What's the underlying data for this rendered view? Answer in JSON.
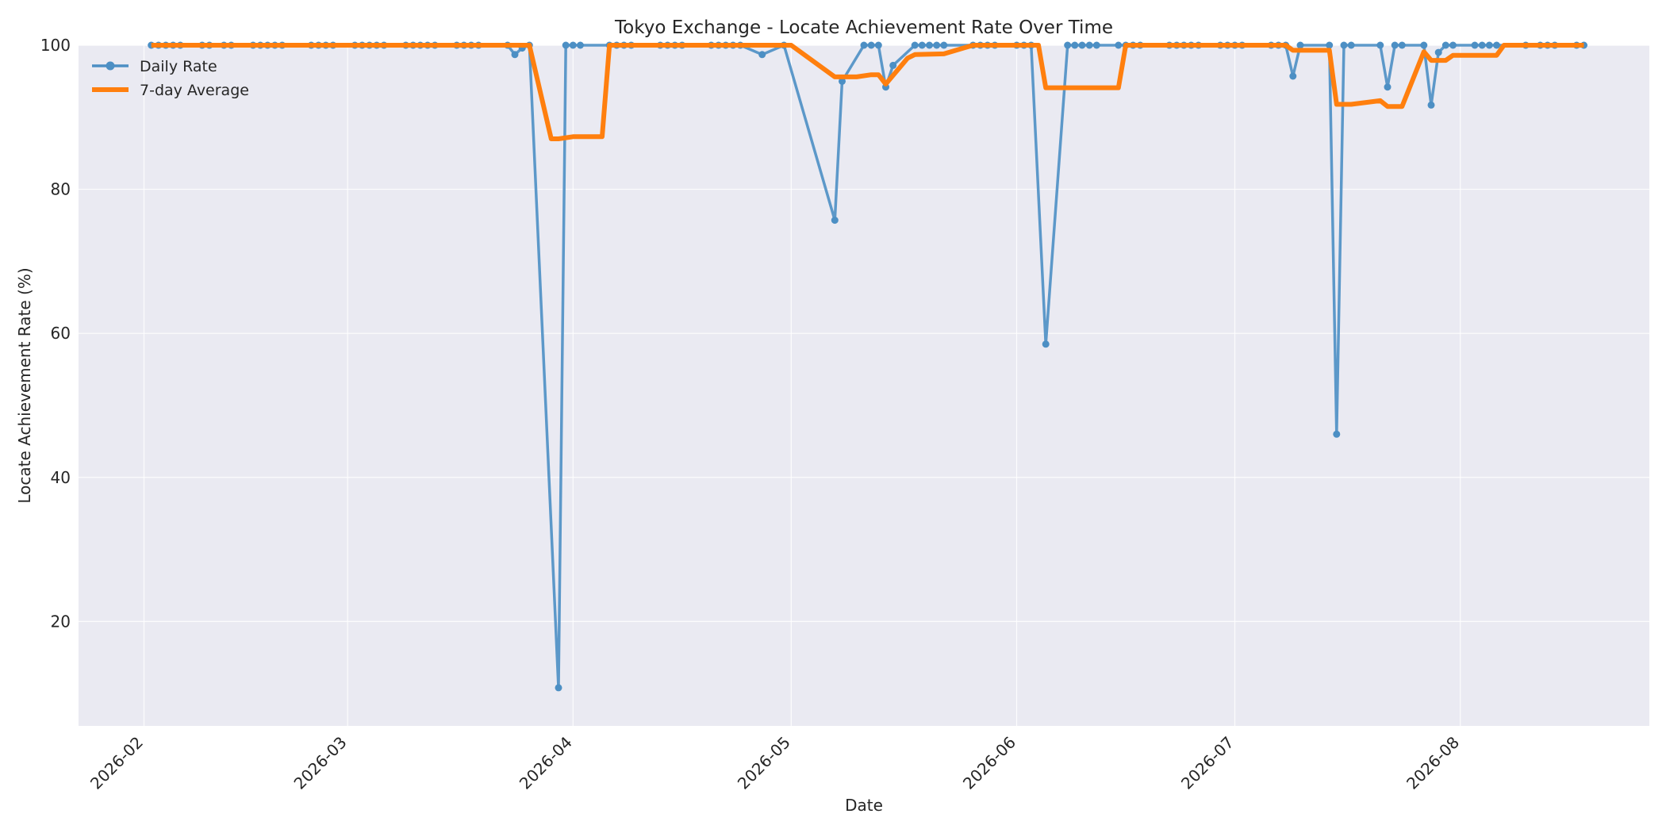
{
  "chart_data": {
    "type": "line",
    "title": "Tokyo Exchange - Locate Achievement Rate Over Time",
    "xlabel": "Date",
    "ylabel": "Locate Achievement Rate (%)",
    "xlim": [
      "2026-01-23",
      "2026-08-27"
    ],
    "ylim": [
      5.5,
      100
    ],
    "x_ticks": [
      "2026-02-01",
      "2026-03-01",
      "2026-04-01",
      "2026-05-01",
      "2026-06-01",
      "2026-07-01",
      "2026-08-01"
    ],
    "x_tick_labels": [
      "2026-02",
      "2026-03",
      "2026-04",
      "2026-05",
      "2026-06",
      "2026-07",
      "2026-08"
    ],
    "y_ticks": [
      20,
      40,
      60,
      80,
      100
    ],
    "grid": true,
    "legend": {
      "position": "upper-left"
    },
    "colors": {
      "daily": "#4c8fc4",
      "average": "#ff7f0e",
      "plot_bg": "#eaeaf2"
    },
    "series": [
      {
        "name": "Daily Rate",
        "style": "line-markers",
        "points": [
          [
            "2026-02-02",
            100
          ],
          [
            "2026-02-03",
            100
          ],
          [
            "2026-02-04",
            100
          ],
          [
            "2026-02-05",
            100
          ],
          [
            "2026-02-06",
            100
          ],
          [
            "2026-02-09",
            100
          ],
          [
            "2026-02-10",
            100
          ],
          [
            "2026-02-12",
            100
          ],
          [
            "2026-02-13",
            100
          ],
          [
            "2026-02-16",
            100
          ],
          [
            "2026-02-17",
            100
          ],
          [
            "2026-02-18",
            100
          ],
          [
            "2026-02-19",
            100
          ],
          [
            "2026-02-20",
            100
          ],
          [
            "2026-02-24",
            100
          ],
          [
            "2026-02-25",
            100
          ],
          [
            "2026-02-26",
            100
          ],
          [
            "2026-02-27",
            100
          ],
          [
            "2026-03-02",
            100
          ],
          [
            "2026-03-03",
            100
          ],
          [
            "2026-03-04",
            100
          ],
          [
            "2026-03-05",
            100
          ],
          [
            "2026-03-06",
            100
          ],
          [
            "2026-03-09",
            100
          ],
          [
            "2026-03-10",
            100
          ],
          [
            "2026-03-11",
            100
          ],
          [
            "2026-03-12",
            100
          ],
          [
            "2026-03-13",
            100
          ],
          [
            "2026-03-16",
            100
          ],
          [
            "2026-03-17",
            100
          ],
          [
            "2026-03-18",
            100
          ],
          [
            "2026-03-19",
            100
          ],
          [
            "2026-03-23",
            100
          ],
          [
            "2026-03-24",
            98.7
          ],
          [
            "2026-03-25",
            99.6
          ],
          [
            "2026-03-26",
            100
          ],
          [
            "2026-03-30",
            10.8
          ],
          [
            "2026-03-31",
            100
          ],
          [
            "2026-04-01",
            100
          ],
          [
            "2026-04-02",
            100
          ],
          [
            "2026-04-06",
            100
          ],
          [
            "2026-04-07",
            100
          ],
          [
            "2026-04-08",
            100
          ],
          [
            "2026-04-09",
            100
          ],
          [
            "2026-04-13",
            100
          ],
          [
            "2026-04-14",
            100
          ],
          [
            "2026-04-15",
            100
          ],
          [
            "2026-04-16",
            100
          ],
          [
            "2026-04-20",
            100
          ],
          [
            "2026-04-21",
            100
          ],
          [
            "2026-04-22",
            100
          ],
          [
            "2026-04-23",
            100
          ],
          [
            "2026-04-24",
            100
          ],
          [
            "2026-04-27",
            98.7
          ],
          [
            "2026-04-30",
            100
          ],
          [
            "2026-05-07",
            75.7
          ],
          [
            "2026-05-08",
            95
          ],
          [
            "2026-05-11",
            100
          ],
          [
            "2026-05-12",
            100
          ],
          [
            "2026-05-13",
            100
          ],
          [
            "2026-05-14",
            94.2
          ],
          [
            "2026-05-15",
            97.2
          ],
          [
            "2026-05-18",
            100
          ],
          [
            "2026-05-19",
            100
          ],
          [
            "2026-05-20",
            100
          ],
          [
            "2026-05-21",
            100
          ],
          [
            "2026-05-22",
            100
          ],
          [
            "2026-05-26",
            100
          ],
          [
            "2026-05-27",
            100
          ],
          [
            "2026-05-28",
            100
          ],
          [
            "2026-05-29",
            100
          ],
          [
            "2026-06-01",
            100
          ],
          [
            "2026-06-02",
            100
          ],
          [
            "2026-06-03",
            100
          ],
          [
            "2026-06-05",
            58.5
          ],
          [
            "2026-06-08",
            100
          ],
          [
            "2026-06-09",
            100
          ],
          [
            "2026-06-10",
            100
          ],
          [
            "2026-06-11",
            100
          ],
          [
            "2026-06-12",
            100
          ],
          [
            "2026-06-15",
            100
          ],
          [
            "2026-06-16",
            100
          ],
          [
            "2026-06-17",
            100
          ],
          [
            "2026-06-18",
            100
          ],
          [
            "2026-06-22",
            100
          ],
          [
            "2026-06-23",
            100
          ],
          [
            "2026-06-24",
            100
          ],
          [
            "2026-06-25",
            100
          ],
          [
            "2026-06-26",
            100
          ],
          [
            "2026-06-29",
            100
          ],
          [
            "2026-06-30",
            100
          ],
          [
            "2026-07-01",
            100
          ],
          [
            "2026-07-02",
            100
          ],
          [
            "2026-07-06",
            100
          ],
          [
            "2026-07-07",
            100
          ],
          [
            "2026-07-08",
            100
          ],
          [
            "2026-07-09",
            95.7
          ],
          [
            "2026-07-10",
            100
          ],
          [
            "2026-07-14",
            100
          ],
          [
            "2026-07-15",
            46
          ],
          [
            "2026-07-16",
            100
          ],
          [
            "2026-07-17",
            100
          ],
          [
            "2026-07-21",
            100
          ],
          [
            "2026-07-22",
            94.2
          ],
          [
            "2026-07-23",
            100
          ],
          [
            "2026-07-24",
            100
          ],
          [
            "2026-07-27",
            100
          ],
          [
            "2026-07-28",
            91.7
          ],
          [
            "2026-07-29",
            99
          ],
          [
            "2026-07-30",
            100
          ],
          [
            "2026-07-31",
            100
          ],
          [
            "2026-08-03",
            100
          ],
          [
            "2026-08-04",
            100
          ],
          [
            "2026-08-05",
            100
          ],
          [
            "2026-08-06",
            100
          ],
          [
            "2026-08-10",
            100
          ],
          [
            "2026-08-12",
            100
          ],
          [
            "2026-08-13",
            100
          ],
          [
            "2026-08-14",
            100
          ],
          [
            "2026-08-17",
            100
          ],
          [
            "2026-08-18",
            100
          ]
        ]
      },
      {
        "name": "7-day Average",
        "style": "line",
        "points": [
          [
            "2026-02-02",
            100
          ],
          [
            "2026-03-26",
            100
          ],
          [
            "2026-03-29",
            87
          ],
          [
            "2026-03-30",
            87
          ],
          [
            "2026-04-01",
            87.3
          ],
          [
            "2026-04-05",
            87.3
          ],
          [
            "2026-04-06",
            100
          ],
          [
            "2026-05-01",
            100
          ],
          [
            "2026-05-07",
            95.6
          ],
          [
            "2026-05-10",
            95.6
          ],
          [
            "2026-05-12",
            95.9
          ],
          [
            "2026-05-13",
            95.9
          ],
          [
            "2026-05-14",
            94.6
          ],
          [
            "2026-05-17",
            98.2
          ],
          [
            "2026-05-18",
            98.7
          ],
          [
            "2026-05-22",
            98.8
          ],
          [
            "2026-05-26",
            100
          ],
          [
            "2026-06-04",
            100
          ],
          [
            "2026-06-05",
            94.1
          ],
          [
            "2026-06-15",
            94.1
          ],
          [
            "2026-06-16",
            100
          ],
          [
            "2026-07-08",
            100
          ],
          [
            "2026-07-09",
            99.3
          ],
          [
            "2026-07-14",
            99.3
          ],
          [
            "2026-07-15",
            91.8
          ],
          [
            "2026-07-17",
            91.8
          ],
          [
            "2026-07-21",
            92.3
          ],
          [
            "2026-07-22",
            91.5
          ],
          [
            "2026-07-24",
            91.5
          ],
          [
            "2026-07-27",
            99.1
          ],
          [
            "2026-07-28",
            97.9
          ],
          [
            "2026-07-30",
            97.9
          ],
          [
            "2026-07-31",
            98.6
          ],
          [
            "2026-08-06",
            98.6
          ],
          [
            "2026-08-07",
            100
          ],
          [
            "2026-08-18",
            100
          ]
        ]
      }
    ]
  }
}
